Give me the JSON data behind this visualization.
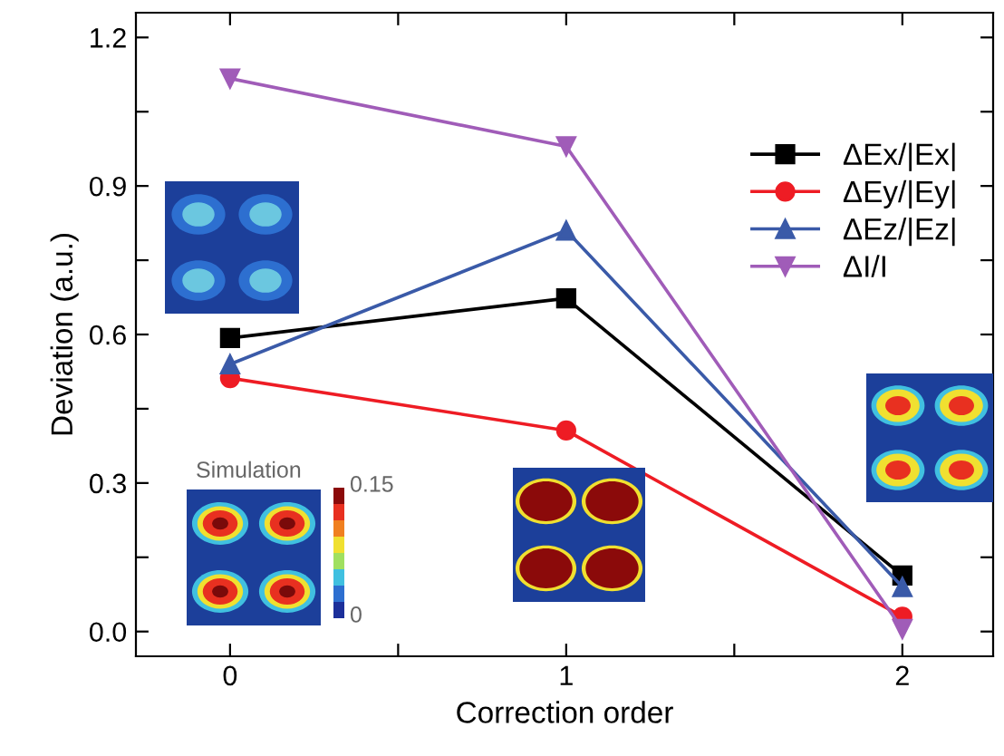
{
  "chart_data": {
    "type": "line",
    "xlabel": "Correction order",
    "ylabel": "Deviation (a.u.)",
    "x": [
      0,
      1,
      2
    ],
    "series": [
      {
        "name": "ΔEx/|Ex|",
        "color": "#000000",
        "marker": "square",
        "values": [
          0.593,
          0.673,
          0.113
        ]
      },
      {
        "name": "ΔEy/|Ey|",
        "color": "#ee1c24",
        "marker": "circle",
        "values": [
          0.512,
          0.406,
          0.03
        ]
      },
      {
        "name": "ΔEz/|Ez|",
        "color": "#3a5aa8",
        "marker": "triangle",
        "values": [
          0.54,
          0.81,
          0.09
        ]
      },
      {
        "name": "ΔI/I",
        "color": "#a05cb8",
        "marker": "triangle_down",
        "values": [
          1.117,
          0.98,
          0.005
        ]
      }
    ],
    "xlim": [
      -0.28,
      2.27
    ],
    "ylim": [
      -0.05,
      1.25
    ],
    "xticks": [
      0,
      {
        "value": 0.5,
        "label": null
      },
      1,
      {
        "value": 1.5,
        "label": null
      },
      2
    ],
    "yticks": [
      {
        "value": 0.0,
        "label": "0.0"
      },
      {
        "value": 0.15,
        "label": null
      },
      {
        "value": 0.3,
        "label": "0.3"
      },
      {
        "value": 0.45,
        "label": null
      },
      {
        "value": 0.6,
        "label": "0.6"
      },
      {
        "value": 0.75,
        "label": null
      },
      {
        "value": 0.9,
        "label": "0.9"
      },
      {
        "value": 1.05,
        "label": null
      },
      {
        "value": 1.2,
        "label": "1.2"
      }
    ],
    "grid": false,
    "legend": "top right",
    "line_style": "solid",
    "annotations": [
      "Simulation",
      "0.15",
      "0"
    ]
  }
}
